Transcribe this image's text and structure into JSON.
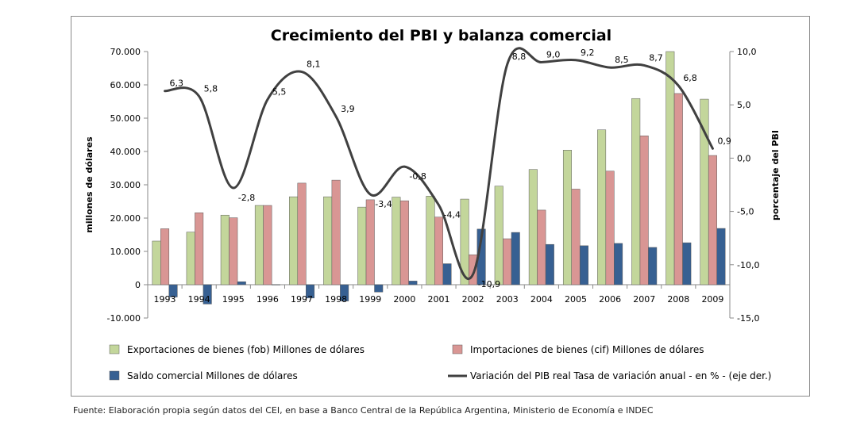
{
  "source_note": "Fuente: Elaboración propia según datos del CEI, en base a Banco Central de la República Argentina, Ministerio de Economía e INDEC",
  "colors": {
    "exports": "#c3d69b",
    "imports": "#d99694",
    "balance": "#376092",
    "gdp_line": "#404040",
    "bar_outline": "#5a5a5a"
  },
  "chart_data": {
    "type": "bar",
    "title": "Crecimiento del PBI y balanza comercial",
    "ylabel": "millones de dólares",
    "y2label": "porcentaje del PBI",
    "ylim": [
      -10000,
      70000
    ],
    "y2lim": [
      -15,
      10
    ],
    "yticks": [
      "-10.000",
      "0",
      "10.000",
      "20.000",
      "30.000",
      "40.000",
      "50.000",
      "60.000",
      "70.000"
    ],
    "y2ticks": [
      "-15,0",
      "-10,0",
      "-5,0",
      "0,0",
      "5,0",
      "10,0"
    ],
    "categories": [
      "1993",
      "1994",
      "1995",
      "1996",
      "1997",
      "1998",
      "1999",
      "2000",
      "2001",
      "2002",
      "2003",
      "2004",
      "2005",
      "2006",
      "2007",
      "2008",
      "2009"
    ],
    "series": [
      {
        "name": "Exportaciones de bienes (fob) Millones de dólares",
        "kind": "bar",
        "values": [
          13100,
          15800,
          20900,
          23800,
          26400,
          26400,
          23300,
          26300,
          26600,
          25700,
          29600,
          34600,
          40400,
          46500,
          55900,
          70000,
          55700
        ]
      },
      {
        "name": "Importaciones de bienes (cif) Millones de dólares",
        "kind": "bar",
        "values": [
          16800,
          21600,
          20100,
          23800,
          30500,
          31400,
          25500,
          25200,
          20300,
          9000,
          13800,
          22400,
          28700,
          34100,
          44700,
          57400,
          38800
        ]
      },
      {
        "name": "Saldo comercial Millones de dólares",
        "kind": "bar",
        "values": [
          -3700,
          -5800,
          900,
          50,
          -4000,
          -4900,
          -2200,
          1100,
          6300,
          16700,
          15700,
          12100,
          11700,
          12400,
          11200,
          12600,
          16900
        ]
      },
      {
        "name": "Variación del PIB real Tasa de variación anual - en % - (eje der.)",
        "kind": "line",
        "axis": "right",
        "values": [
          6.3,
          5.8,
          -2.8,
          5.5,
          8.1,
          3.9,
          -3.4,
          -0.8,
          -4.4,
          -10.9,
          8.8,
          9.0,
          9.2,
          8.5,
          8.7,
          6.8,
          0.9
        ],
        "labels": [
          "6,3",
          "5,8",
          "-2,8",
          "5,5",
          "8,1",
          "3,9",
          "-3,4",
          "-0,8",
          "-4,4",
          "-10,9",
          "8,8",
          "9,0",
          "9,2",
          "8,5",
          "8,7",
          "6,8",
          "0,9"
        ]
      }
    ],
    "legend_position": "bottom",
    "grid": false
  }
}
